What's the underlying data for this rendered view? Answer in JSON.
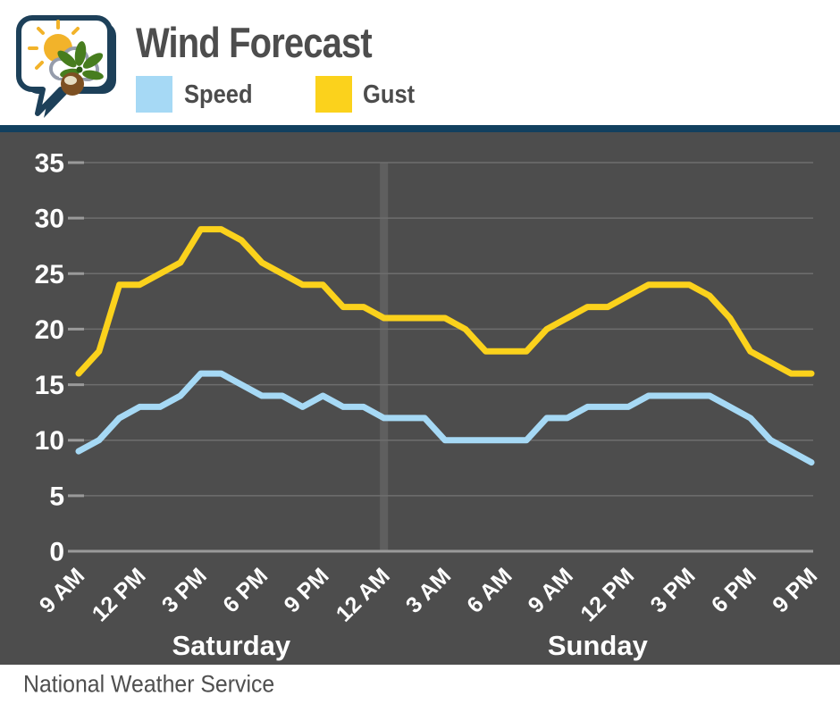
{
  "header": {
    "title": "Wind Forecast",
    "legend": [
      {
        "label": "Speed",
        "color": "#a6d9f5"
      },
      {
        "label": "Gust",
        "color": "#fbd21c"
      }
    ]
  },
  "icons": {
    "logo": "nws-speech-bubble-sun-cloud-buckeye"
  },
  "footer": {
    "source": "National Weather Service"
  },
  "colors": {
    "header_bg": "#ffffff",
    "navy_bar": "#12405f",
    "chart_bg": "#4d4d4d",
    "gridline": "#6e6e6e",
    "tick": "#9a9a9a",
    "axis_line": "#9a9a9a",
    "midnight_band": "#5f5f5f",
    "speed_line": "#a6d9f5",
    "gust_line": "#fbd21c",
    "label_text": "#ffffff",
    "dark_text": "#4c4c4c"
  },
  "chart_data": {
    "type": "line",
    "title": "Wind Forecast",
    "ylim": [
      0,
      35
    ],
    "y_ticks": [
      0,
      5,
      10,
      15,
      20,
      25,
      30,
      35
    ],
    "grid": "horizontal",
    "x_tick_labels": [
      "9 AM",
      "12 PM",
      "3 PM",
      "6 PM",
      "9 PM",
      "12 AM",
      "3 AM",
      "6 AM",
      "9 AM",
      "12 PM",
      "3 PM",
      "6 PM",
      "9 PM"
    ],
    "hours_per_tick": 3,
    "day_labels": [
      {
        "label": "Saturday",
        "from_tick": 0,
        "to_tick": 5
      },
      {
        "label": "Sunday",
        "from_tick": 5,
        "to_tick": 12
      }
    ],
    "midnight_divider_tick": 5,
    "series": [
      {
        "name": "Speed",
        "color": "#a6d9f5",
        "values": [
          9,
          10,
          12,
          13,
          13,
          14,
          16,
          16,
          15,
          14,
          14,
          13,
          14,
          13,
          13,
          12,
          12,
          12,
          10,
          10,
          10,
          10,
          10,
          12,
          12,
          13,
          13,
          13,
          14,
          14,
          14,
          14,
          13,
          12,
          10,
          9,
          8
        ]
      },
      {
        "name": "Gust",
        "color": "#fbd21c",
        "values": [
          16,
          18,
          24,
          24,
          25,
          26,
          29,
          29,
          28,
          26,
          25,
          24,
          24,
          22,
          22,
          21,
          21,
          21,
          21,
          20,
          18,
          18,
          18,
          20,
          21,
          22,
          22,
          23,
          24,
          24,
          24,
          23,
          21,
          18,
          17,
          16,
          16
        ]
      }
    ]
  }
}
